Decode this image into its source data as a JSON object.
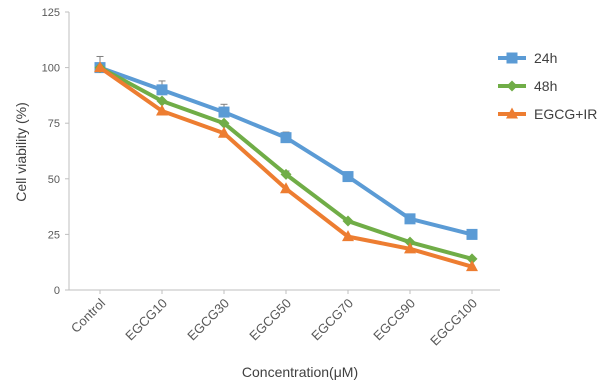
{
  "chart_data": {
    "type": "line",
    "title": "",
    "xlabel": "Concentration(μM)",
    "ylabel": "Cell viability (%)",
    "ylim": [
      0,
      125
    ],
    "yticks": [
      0,
      25,
      50,
      75,
      100,
      125
    ],
    "categories": [
      "Control",
      "EGCG10",
      "EGCG30",
      "EGCG50",
      "EGCG70",
      "EGCG90",
      "EGCG100"
    ],
    "legend_position": "right",
    "series": [
      {
        "name": "24h",
        "marker": "square",
        "color": "#5b9bd5",
        "values": [
          100,
          90,
          80,
          68.5,
          51,
          32,
          25
        ],
        "errors": [
          5,
          4,
          3.5,
          2.5,
          1.5,
          1,
          1
        ]
      },
      {
        "name": "48h",
        "marker": "diamond",
        "color": "#70ad47",
        "values": [
          100,
          85,
          75,
          52,
          31,
          21.5,
          14
        ],
        "errors": [
          0,
          0,
          0,
          1.5,
          0,
          0,
          0
        ]
      },
      {
        "name": "EGCG+IR",
        "marker": "triangle",
        "color": "#ed7d31",
        "values": [
          100,
          80.5,
          70.5,
          45.5,
          24,
          18.5,
          10.5
        ],
        "errors": [
          0,
          0,
          0,
          0,
          0,
          0,
          0
        ]
      }
    ]
  }
}
